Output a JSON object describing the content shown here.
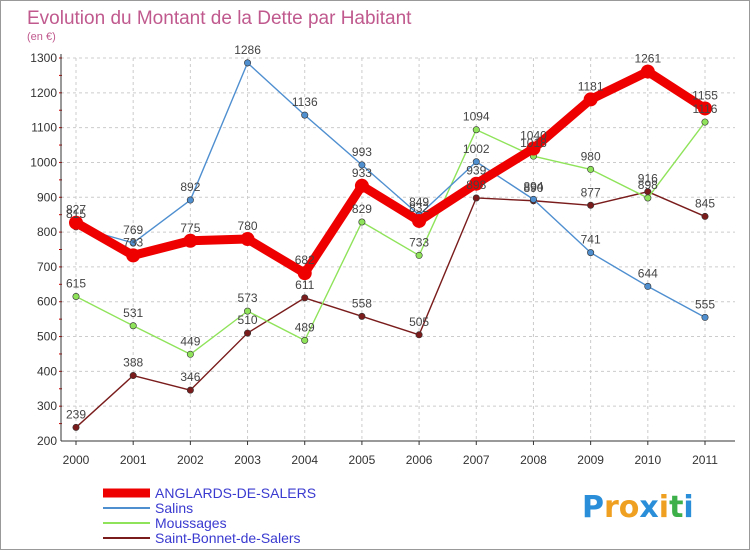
{
  "chart_data": {
    "type": "line",
    "title": "Evolution du Montant de la Dette par Habitant",
    "subtitle": "(en €)",
    "xlabel": "",
    "ylabel": "",
    "categories": [
      "2000",
      "2001",
      "2002",
      "2003",
      "2004",
      "2005",
      "2006",
      "2007",
      "2008",
      "2009",
      "2010",
      "2011"
    ],
    "ylim": [
      200,
      1300
    ],
    "yticks": [
      200,
      300,
      400,
      500,
      600,
      700,
      800,
      900,
      1000,
      1100,
      1200,
      1300
    ],
    "grid": true,
    "legend_position": "bottom-left",
    "series": [
      {
        "name": "ANGLARDS-DE-SALERS",
        "color": "#ee0000",
        "values": [
          827,
          733,
          775,
          780,
          682,
          933,
          832,
          939,
          1040,
          1181,
          1261,
          1155
        ]
      },
      {
        "name": "Salins",
        "color": "#4f8fd0",
        "values": [
          815,
          769,
          892,
          1286,
          1136,
          993,
          849,
          1002,
          894,
          741,
          644,
          555
        ]
      },
      {
        "name": "Moussages",
        "color": "#8fe35a",
        "values": [
          615,
          531,
          449,
          573,
          489,
          829,
          733,
          1094,
          1018,
          980,
          898,
          1116
        ]
      },
      {
        "name": "Saint-Bonnet-de-Salers",
        "color": "#7a1c1c",
        "values": [
          239,
          388,
          346,
          510,
          611,
          558,
          505,
          898,
          890,
          877,
          916,
          845
        ]
      }
    ]
  },
  "brand": {
    "letters": [
      "P",
      "r",
      "o",
      "x",
      "i",
      "t",
      "i"
    ],
    "colors": [
      "#2a8fd8",
      "#f0a020",
      "#f0a020",
      "#2a8fd8",
      "#f0a020",
      "#3db04a",
      "#2a8fd8"
    ]
  },
  "colors": {
    "legend_text": "#3a3ad0",
    "axis": "#333333",
    "grid": "#cccccc"
  }
}
